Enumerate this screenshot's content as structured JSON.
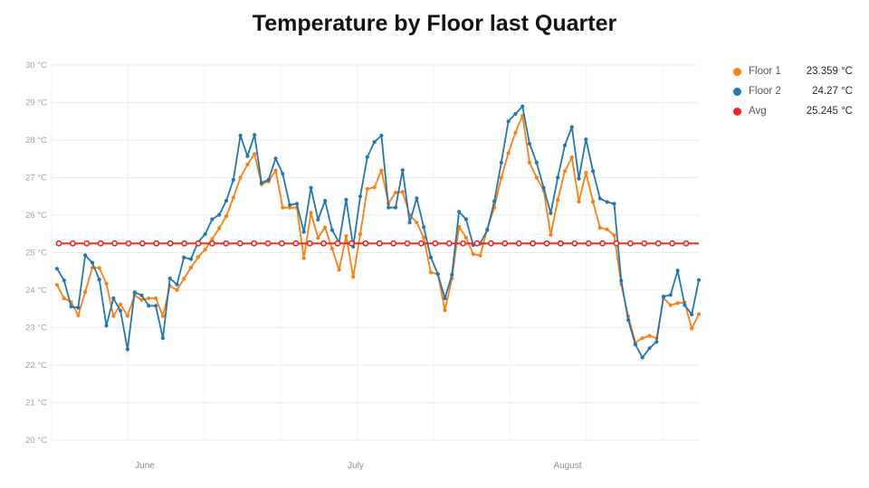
{
  "chart_data": {
    "type": "line",
    "title": "Temperature by Floor last Quarter",
    "x_axis": {
      "month_labels": [
        {
          "label": "June",
          "x": 160
        },
        {
          "label": "July",
          "x": 393
        },
        {
          "label": "August",
          "x": 627
        }
      ]
    },
    "y_axis": {
      "min": 20,
      "max": 30,
      "tick_labels": [
        "20 °C",
        "21 °C",
        "22 °C",
        "23 °C",
        "24 °C",
        "25 °C",
        "26 °C",
        "27 °C",
        "28 °C",
        "29 °C",
        "30 °C"
      ]
    },
    "grid": {
      "h_color": "#ebebeb",
      "v_color": "#f3f3f3",
      "on": true
    },
    "series": [
      {
        "name": "Floor 1",
        "color": "#ff7f0e",
        "values": [
          24.14,
          23.78,
          23.68,
          23.33,
          23.95,
          24.6,
          24.59,
          24.17,
          23.31,
          23.62,
          23.31,
          23.86,
          23.74,
          23.78,
          23.78,
          23.31,
          24.11,
          24.0,
          24.3,
          24.6,
          24.88,
          25.08,
          25.36,
          25.65,
          25.97,
          26.46,
          27.0,
          27.35,
          27.63,
          26.82,
          26.9,
          27.19,
          26.2,
          26.2,
          26.2,
          24.85,
          26.06,
          25.39,
          25.67,
          25.1,
          24.54,
          25.44,
          24.35,
          25.49,
          26.7,
          26.74,
          27.19,
          26.31,
          26.6,
          26.62,
          26.0,
          25.8,
          25.4,
          24.47,
          24.43,
          23.46,
          24.31,
          25.69,
          25.4,
          24.96,
          24.92,
          25.63,
          26.2,
          27.0,
          27.65,
          28.2,
          28.65,
          27.4,
          27.0,
          26.66,
          25.47,
          26.4,
          27.17,
          27.54,
          26.36,
          27.13,
          26.36,
          25.66,
          25.62,
          25.46,
          24.15,
          23.3,
          22.6,
          22.72,
          22.78,
          22.72,
          23.79,
          23.6,
          23.65,
          23.67,
          22.97,
          23.36
        ]
      },
      {
        "name": "Floor 2",
        "color": "#1f77b4",
        "values": [
          24.57,
          24.26,
          23.56,
          23.53,
          24.93,
          24.73,
          24.28,
          23.05,
          23.78,
          23.45,
          22.42,
          23.94,
          23.86,
          23.58,
          23.58,
          22.72,
          24.31,
          24.15,
          24.87,
          24.83,
          25.28,
          25.49,
          25.89,
          26.01,
          26.38,
          26.94,
          28.12,
          27.57,
          28.14,
          26.86,
          26.94,
          27.51,
          27.1,
          26.27,
          26.3,
          25.55,
          26.73,
          25.88,
          26.38,
          25.6,
          25.27,
          26.41,
          25.16,
          26.5,
          27.55,
          27.95,
          28.12,
          26.2,
          26.2,
          27.2,
          25.8,
          26.45,
          25.68,
          24.87,
          24.43,
          23.78,
          24.41,
          26.09,
          25.89,
          25.2,
          25.24,
          25.6,
          26.37,
          27.4,
          28.5,
          28.7,
          28.9,
          27.9,
          27.4,
          26.73,
          26.05,
          27.0,
          27.86,
          28.35,
          26.97,
          28.02,
          27.17,
          26.44,
          26.35,
          26.3,
          24.25,
          23.2,
          22.55,
          22.2,
          22.45,
          22.62,
          23.83,
          23.87,
          24.52,
          23.6,
          23.35,
          24.27
        ]
      }
    ],
    "avg_line": {
      "name": "Avg",
      "color": "#ee2620",
      "value": 25.245
    },
    "legend": [
      {
        "label": "Floor 1",
        "value_text": "23.359 °C",
        "color": "#ff7f0e"
      },
      {
        "label": "Floor 2",
        "value_text": "24.27 °C",
        "color": "#1f77b4"
      },
      {
        "label": "Avg",
        "value_text": "25.245 °C",
        "color": "#ee2620"
      }
    ]
  }
}
